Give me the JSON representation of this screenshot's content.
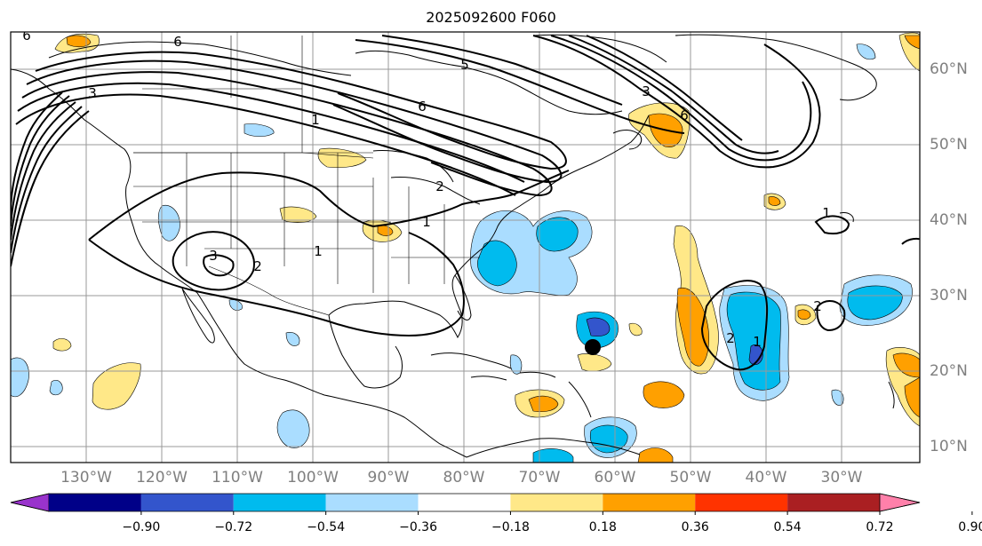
{
  "title": "2025092600 F060",
  "lon_labels": [
    "130°W",
    "120°W",
    "110°W",
    "100°W",
    "90°W",
    "80°W",
    "70°W",
    "60°W",
    "50°W",
    "40°W",
    "30°W"
  ],
  "lat_labels": [
    "60°N",
    "50°N",
    "40°N",
    "30°N",
    "20°N",
    "10°N"
  ],
  "colorbar": {
    "ticks": [
      "−0.90",
      "−0.72",
      "−0.54",
      "−0.36",
      "−0.18",
      "0.18",
      "0.36",
      "0.54",
      "0.72",
      "0.90"
    ],
    "colors": [
      "#9933cc",
      "#000088",
      "#3355cc",
      "#00bbee",
      "#aaddff",
      "#ffffff",
      "#ffe888",
      "#ffa000",
      "#ff3300",
      "#aa1f22",
      "#ff80aa"
    ]
  },
  "contour_labels": [
    "6",
    "6",
    "3",
    "6",
    "5",
    "3",
    "6",
    "1",
    "2",
    "1",
    "3",
    "2",
    "2",
    "1",
    "1",
    "2",
    "1"
  ],
  "fill_colors": {
    "light_blue": "#aaddff",
    "blue": "#00bbee",
    "dark_blue": "#3355cc",
    "light_yellow": "#ffe888",
    "orange": "#ffa000"
  },
  "marker": {
    "lon": -65,
    "lat": 23.5
  }
}
